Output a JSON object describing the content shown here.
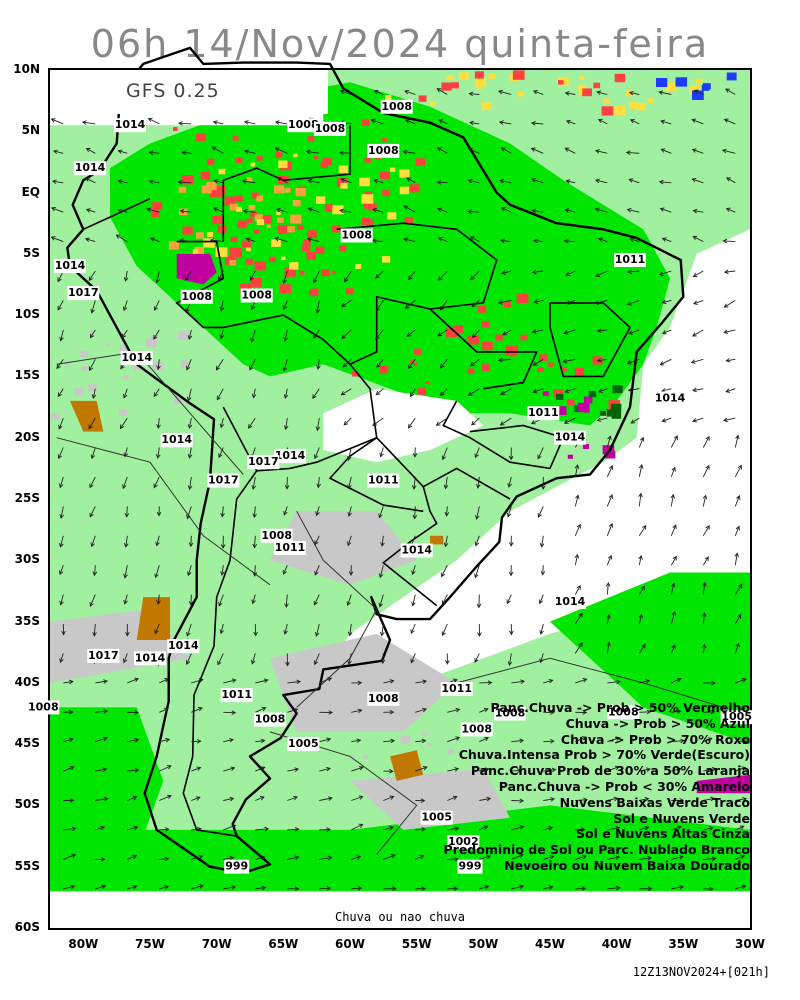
{
  "title": "06h 14/Nov/2024 quinta-feira",
  "model": "GFS 0.25",
  "axes": {
    "lat_ticks": [
      "10N",
      "5N",
      "EQ",
      "5S",
      "10S",
      "15S",
      "20S",
      "25S",
      "30S",
      "35S",
      "40S",
      "45S",
      "50S",
      "55S",
      "60S"
    ],
    "lat_values": [
      10,
      5,
      0,
      -5,
      -10,
      -15,
      -20,
      -25,
      -30,
      -35,
      -40,
      -45,
      -50,
      -55,
      -60
    ],
    "lon_ticks": [
      "80W",
      "75W",
      "70W",
      "65W",
      "60W",
      "55W",
      "50W",
      "45W",
      "40W",
      "35W",
      "30W"
    ],
    "lon_values": [
      -80,
      -75,
      -70,
      -65,
      -60,
      -55,
      -50,
      -45,
      -40,
      -35,
      -30
    ],
    "lon_range": [
      -82.5,
      -30
    ],
    "lat_range": [
      -60,
      10
    ]
  },
  "legend": [
    "Panc.Chuva -> Prob > 50% Vermelho",
    "Chuva -> Prob > 50% Azul",
    "Chuva -> Prob > 70% Roxo",
    "Chuva.Intensa Prob > 70% Verde(Escuro)",
    "Panc.Chuva Prob de 30% a 50% Laranja",
    "Panc.Chuva -> Prob < 30% Amarelo",
    "Nuvens Baixas Verde Traco",
    "Sol e Nuvens Verde",
    "Sol e Nuvens Altas Cinza",
    "Predominio de Sol ou Parc. Nublado Branco",
    "Nevoeiro ou Nuvem Baixa Dourado"
  ],
  "colors": {
    "green": "#00e600",
    "light_green": "#a0f0a0",
    "dark_green": "#006400",
    "red": "#ff4040",
    "blue": "#1e3cff",
    "purple": "#c000a0",
    "orange": "#ffa040",
    "yellow": "#ffe040",
    "gray": "#c8c8c8",
    "gold": "#c07800"
  },
  "bottom_label": "Chuva ou nao chuva",
  "run_stamp": "12Z13NOV2024+[021h]",
  "isobars": [
    {
      "value": "1014",
      "lon": -76.5,
      "lat": 5.5
    },
    {
      "value": "1014",
      "lon": -79.5,
      "lat": 2.0
    },
    {
      "value": "1008",
      "lon": -63.5,
      "lat": 5.5
    },
    {
      "value": "1008",
      "lon": -61.5,
      "lat": 5.2
    },
    {
      "value": "1008",
      "lon": -56.5,
      "lat": 7.0
    },
    {
      "value": "1008",
      "lon": -57.5,
      "lat": 3.4
    },
    {
      "value": "1008",
      "lon": -59.5,
      "lat": -3.5
    },
    {
      "value": "1014",
      "lon": -81.0,
      "lat": -6.0
    },
    {
      "value": "1017",
      "lon": -80.0,
      "lat": -8.2
    },
    {
      "value": "1008",
      "lon": -71.5,
      "lat": -8.5
    },
    {
      "value": "1008",
      "lon": -67.0,
      "lat": -8.4
    },
    {
      "value": "1011",
      "lon": -39.0,
      "lat": -5.5
    },
    {
      "value": "1014",
      "lon": -76.0,
      "lat": -13.5
    },
    {
      "value": "1014",
      "lon": -73.0,
      "lat": -20.2
    },
    {
      "value": "1014",
      "lon": -36.0,
      "lat": -16.8
    },
    {
      "value": "1011",
      "lon": -45.5,
      "lat": -18.0
    },
    {
      "value": "1014",
      "lon": -43.5,
      "lat": -20.0
    },
    {
      "value": "1014",
      "lon": -64.5,
      "lat": -21.5
    },
    {
      "value": "1017",
      "lon": -66.5,
      "lat": -22.0
    },
    {
      "value": "1017",
      "lon": -69.5,
      "lat": -23.5
    },
    {
      "value": "1011",
      "lon": -57.5,
      "lat": -23.5
    },
    {
      "value": "1008",
      "lon": -65.5,
      "lat": -28.0
    },
    {
      "value": "1011",
      "lon": -64.5,
      "lat": -29.0
    },
    {
      "value": "1014",
      "lon": -55.0,
      "lat": -29.2
    },
    {
      "value": "1014",
      "lon": -43.5,
      "lat": -33.4
    },
    {
      "value": "1017",
      "lon": -78.5,
      "lat": -37.8
    },
    {
      "value": "1014",
      "lon": -75.0,
      "lat": -38.0
    },
    {
      "value": "1014",
      "lon": -72.5,
      "lat": -37.0
    },
    {
      "value": "1011",
      "lon": -68.5,
      "lat": -41.0
    },
    {
      "value": "1011",
      "lon": -52.0,
      "lat": -40.5
    },
    {
      "value": "1008",
      "lon": -57.5,
      "lat": -41.3
    },
    {
      "value": "1008",
      "lon": -83.0,
      "lat": -42.0
    },
    {
      "value": "1008",
      "lon": -66.0,
      "lat": -43.0
    },
    {
      "value": "1008",
      "lon": -48.0,
      "lat": -42.5
    },
    {
      "value": "1008",
      "lon": -50.5,
      "lat": -43.8
    },
    {
      "value": "1008",
      "lon": -39.5,
      "lat": -42.4
    },
    {
      "value": "1005",
      "lon": -31.0,
      "lat": -42.8
    },
    {
      "value": "1005",
      "lon": -63.5,
      "lat": -45.0
    },
    {
      "value": "1005",
      "lon": -53.5,
      "lat": -51.0
    },
    {
      "value": "1002",
      "lon": -51.5,
      "lat": -53.0
    },
    {
      "value": "999",
      "lon": -51.0,
      "lat": -55.0
    },
    {
      "value": "999",
      "lon": -68.5,
      "lat": -55.0
    }
  ]
}
